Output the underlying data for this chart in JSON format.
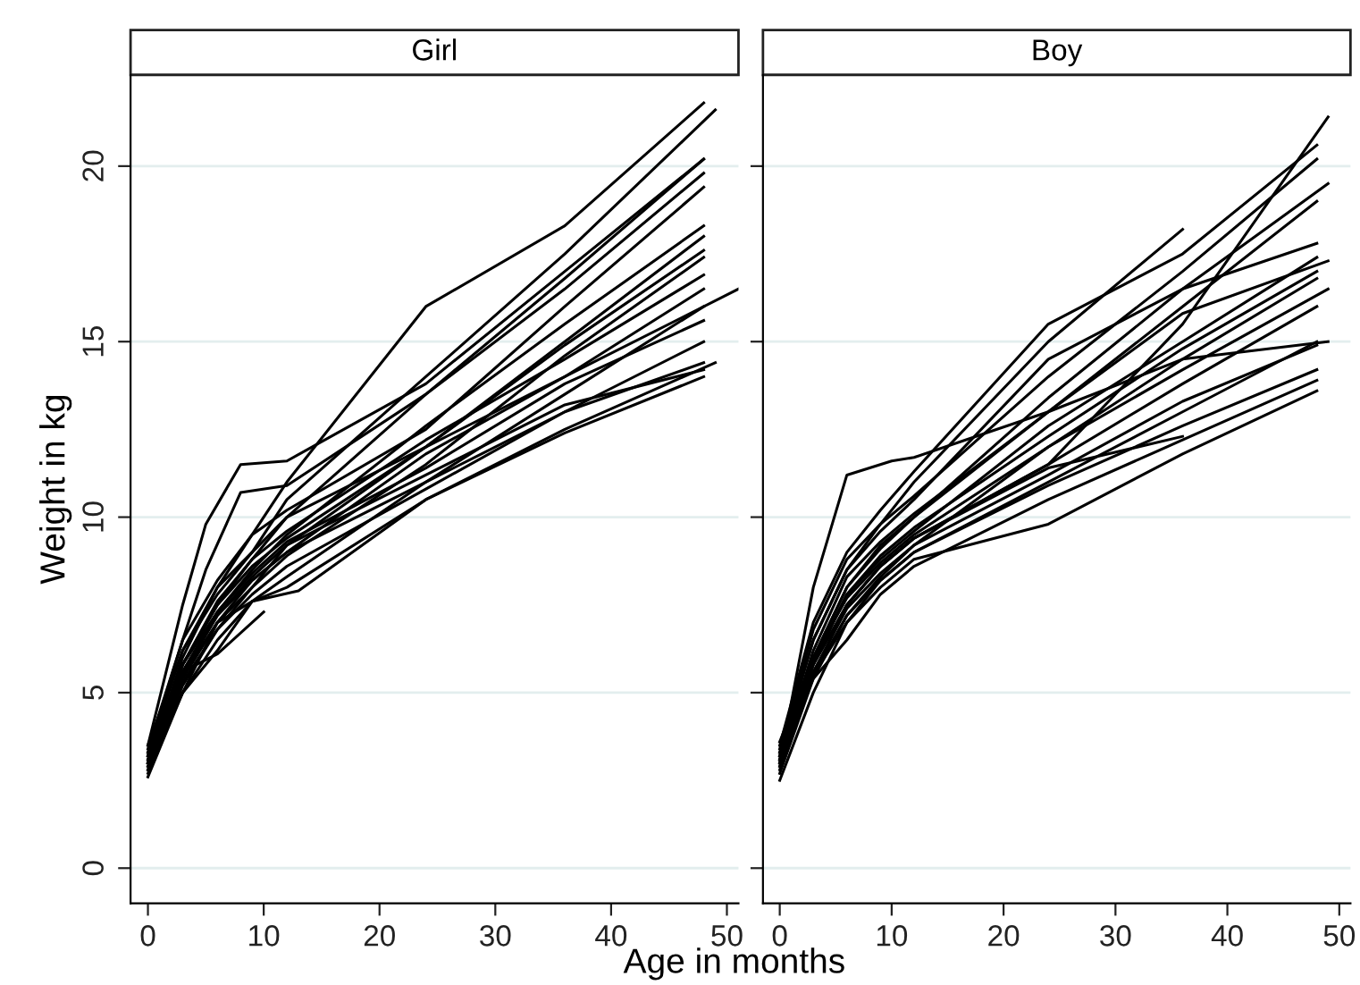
{
  "chart_data": [
    {
      "type": "line",
      "title": "Girl",
      "xlabel": "Age in months",
      "ylabel": "Weight in kg",
      "x": [
        0,
        3,
        6,
        9,
        12,
        24,
        36,
        48
      ],
      "xlim": [
        -1.5,
        51
      ],
      "xticks": [
        0,
        10,
        20,
        30,
        40,
        50
      ],
      "ylim": [
        -1,
        22.6
      ],
      "yticks": [
        0,
        5,
        10,
        15,
        20
      ],
      "grid": "y",
      "line_style": "solid",
      "series": [
        {
          "color": "#000000",
          "x": [
            0,
            3,
            5,
            8,
            12,
            24,
            36,
            48
          ],
          "values": [
            3.5,
            7.5,
            9.8,
            11.5,
            11.6,
            13.8,
            17.0,
            20.2
          ]
        },
        {
          "color": "#000000",
          "values": [
            3.0,
            6.0,
            8.0,
            9.5,
            11.0,
            16.0,
            18.3,
            21.8
          ]
        },
        {
          "color": "#000000",
          "x": [
            0,
            3,
            6,
            9,
            12,
            24,
            36,
            49
          ],
          "values": [
            3.2,
            6.2,
            8.0,
            9.0,
            10.5,
            14.0,
            17.5,
            21.6
          ]
        },
        {
          "color": "#000000",
          "x": [
            0,
            3,
            5,
            8,
            12,
            24,
            36,
            48
          ],
          "values": [
            3.3,
            6.5,
            8.5,
            10.7,
            10.9,
            13.5,
            16.8,
            20.2
          ]
        },
        {
          "color": "#000000",
          "values": [
            3.0,
            5.8,
            7.5,
            8.8,
            10.0,
            13.5,
            16.5,
            19.8
          ]
        },
        {
          "color": "#000000",
          "values": [
            3.4,
            6.5,
            8.2,
            9.5,
            10.2,
            12.5,
            16.0,
            19.4
          ]
        },
        {
          "color": "#000000",
          "values": [
            3.1,
            5.6,
            7.3,
            8.5,
            9.5,
            12.6,
            15.5,
            18.3
          ]
        },
        {
          "color": "#000000",
          "values": [
            2.9,
            5.5,
            7.2,
            8.3,
            9.2,
            12.0,
            15.0,
            18.0
          ]
        },
        {
          "color": "#000000",
          "values": [
            3.0,
            5.8,
            7.5,
            8.6,
            9.4,
            12.0,
            14.9,
            17.6
          ]
        },
        {
          "color": "#000000",
          "values": [
            2.8,
            5.4,
            7.0,
            8.0,
            8.9,
            11.5,
            14.6,
            17.4
          ]
        },
        {
          "color": "#000000",
          "values": [
            3.2,
            5.8,
            7.6,
            8.8,
            9.6,
            12.2,
            14.5,
            16.9
          ]
        },
        {
          "color": "#000000",
          "values": [
            3.0,
            5.5,
            7.0,
            8.2,
            9.0,
            11.8,
            14.0,
            16.5
          ]
        },
        {
          "color": "#000000",
          "values": [
            2.6,
            5.0,
            6.5,
            7.6,
            8.3,
            11.0,
            13.5,
            16.0
          ]
        },
        {
          "color": "#000000",
          "values": [
            3.1,
            5.8,
            7.3,
            8.4,
            9.3,
            11.4,
            13.8,
            15.6
          ]
        },
        {
          "color": "#000000",
          "values": [
            2.7,
            5.2,
            6.8,
            7.8,
            8.6,
            10.8,
            13.0,
            15.0
          ]
        },
        {
          "color": "#000000",
          "values": [
            3.3,
            5.6,
            7.2,
            8.2,
            9.0,
            11.0,
            13.0,
            14.4
          ]
        },
        {
          "color": "#000000",
          "values": [
            2.9,
            5.0,
            6.2,
            7.6,
            8.0,
            10.5,
            12.4,
            14.0
          ]
        },
        {
          "color": "#000000",
          "values": [
            3.0,
            5.3,
            6.8,
            8.0,
            9.2,
            11.2,
            13.2,
            14.2
          ]
        },
        {
          "color": "#000000",
          "x": [
            0,
            3,
            6,
            9,
            12,
            24,
            36,
            51
          ],
          "values": [
            3.5,
            6.2,
            7.8,
            9.0,
            10.0,
            12.0,
            14.0,
            16.5
          ]
        },
        {
          "color": "#000000",
          "x": [
            0,
            3,
            6,
            10
          ],
          "values": [
            3.2,
            5.6,
            6.1,
            7.3
          ]
        },
        {
          "color": "#000000",
          "x": [
            0,
            3,
            6,
            9,
            13,
            24,
            36,
            49
          ],
          "values": [
            2.8,
            5.0,
            7.0,
            7.6,
            7.9,
            10.5,
            12.5,
            14.4
          ]
        }
      ]
    },
    {
      "type": "line",
      "title": "Boy",
      "x": [
        0,
        3,
        6,
        9,
        12,
        24,
        36,
        48
      ],
      "xlim": [
        -1.5,
        51
      ],
      "xticks": [
        0,
        10,
        20,
        30,
        40,
        50
      ],
      "ylim": [
        -1,
        22.6
      ],
      "yticks": [
        0,
        5,
        10,
        15,
        20
      ],
      "tick_labels": "x",
      "grid": "y",
      "line_style": "solid",
      "series": [
        {
          "color": "#000000",
          "x": [
            0,
            3,
            6,
            10,
            12,
            24,
            36,
            49
          ],
          "values": [
            3.0,
            8.0,
            11.2,
            11.6,
            11.7,
            13.0,
            14.5,
            15.0
          ]
        },
        {
          "color": "#000000",
          "values": [
            3.5,
            7.0,
            9.0,
            10.2,
            11.3,
            15.5,
            17.5,
            20.6
          ]
        },
        {
          "color": "#000000",
          "x": [
            0,
            3,
            6,
            9,
            12,
            24,
            36
          ],
          "values": [
            3.2,
            6.5,
            8.5,
            9.8,
            11.0,
            15.0,
            18.2
          ]
        },
        {
          "color": "#000000",
          "x": [
            0,
            3,
            6,
            9,
            12,
            24,
            36,
            49
          ],
          "values": [
            2.8,
            5.5,
            7.5,
            8.6,
            9.4,
            11.5,
            15.5,
            21.4
          ]
        },
        {
          "color": "#000000",
          "values": [
            3.3,
            6.8,
            8.8,
            9.8,
            10.6,
            14.0,
            17.0,
            20.2
          ]
        },
        {
          "color": "#000000",
          "x": [
            0,
            3,
            6,
            9,
            12,
            24,
            36,
            49
          ],
          "values": [
            3.0,
            6.0,
            8.0,
            9.2,
            10.0,
            13.4,
            16.5,
            19.5
          ]
        },
        {
          "color": "#000000",
          "values": [
            3.1,
            6.2,
            8.3,
            9.3,
            10.1,
            13.0,
            16.0,
            19.0
          ]
        },
        {
          "color": "#000000",
          "values": [
            3.4,
            6.5,
            8.5,
            9.6,
            10.5,
            14.5,
            16.5,
            17.8
          ]
        },
        {
          "color": "#000000",
          "values": [
            2.9,
            5.8,
            7.8,
            8.8,
            9.6,
            12.6,
            15.0,
            17.4
          ]
        },
        {
          "color": "#000000",
          "values": [
            3.0,
            5.9,
            7.8,
            8.9,
            9.7,
            12.3,
            14.8,
            17.0
          ]
        },
        {
          "color": "#000000",
          "values": [
            3.2,
            6.0,
            7.7,
            8.7,
            9.5,
            12.0,
            14.5,
            16.8
          ]
        },
        {
          "color": "#000000",
          "x": [
            0,
            3,
            6,
            9,
            12,
            24,
            36,
            49
          ],
          "values": [
            2.7,
            5.4,
            7.2,
            8.3,
            9.2,
            12.0,
            14.2,
            16.5
          ]
        },
        {
          "color": "#000000",
          "values": [
            3.1,
            5.8,
            7.5,
            8.6,
            9.4,
            11.5,
            13.8,
            16.0
          ]
        },
        {
          "color": "#000000",
          "values": [
            2.9,
            5.5,
            7.2,
            8.2,
            9.0,
            11.0,
            13.0,
            15.0
          ]
        },
        {
          "color": "#000000",
          "x": [
            0,
            3,
            6,
            9,
            12,
            24,
            36,
            48
          ],
          "values": [
            3.1,
            5.6,
            7.4,
            8.4,
            9.2,
            11.2,
            13.3,
            14.9
          ]
        },
        {
          "color": "#000000",
          "values": [
            2.5,
            5.0,
            7.0,
            8.2,
            9.0,
            10.9,
            12.6,
            14.2
          ]
        },
        {
          "color": "#000000",
          "values": [
            3.3,
            5.4,
            6.5,
            7.8,
            8.6,
            10.5,
            12.2,
            13.9
          ]
        },
        {
          "color": "#000000",
          "values": [
            3.0,
            5.5,
            7.0,
            8.0,
            8.8,
            9.8,
            11.8,
            13.6
          ]
        },
        {
          "color": "#000000",
          "x": [
            0,
            3,
            6,
            9,
            12,
            24,
            36
          ],
          "values": [
            3.2,
            5.8,
            7.5,
            8.6,
            9.4,
            11.4,
            12.3
          ]
        },
        {
          "color": "#000000",
          "x": [
            0,
            3,
            6,
            9,
            12,
            24,
            36,
            49
          ],
          "values": [
            3.6,
            6.0,
            8.0,
            9.1,
            10.0,
            13.0,
            15.8,
            17.3
          ]
        }
      ]
    }
  ]
}
